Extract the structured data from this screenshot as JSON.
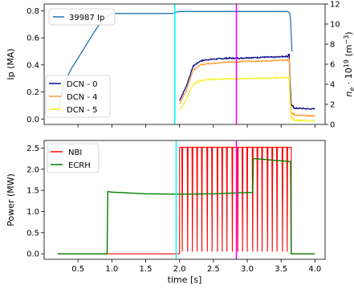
{
  "chart_data": [
    {
      "type": "line",
      "xlabel": "",
      "ylabel": "Ip (MA)",
      "y2label_main": "n",
      "y2label_sub": "e",
      "y2label_rest": " · 10",
      "y2label_exp": "19",
      "y2label_unit": " (m",
      "y2label_unit_exp": "−3",
      "y2label_close": ")",
      "xlim": [
        0,
        4.15
      ],
      "ylim": [
        -0.04,
        0.85
      ],
      "y2lim": [
        0,
        12
      ],
      "xticks": [
        0.5,
        1.0,
        1.5,
        2.0,
        2.5,
        3.0,
        3.5,
        4.0
      ],
      "yticks": [
        0.0,
        0.2,
        0.4,
        0.6,
        0.8
      ],
      "ytick_labels": [
        "0.0",
        "0.2",
        "0.4",
        "0.6",
        "0.8"
      ],
      "y2ticks": [
        0,
        2,
        4,
        6,
        8,
        10,
        12
      ],
      "y2tick_labels": [
        "0",
        "2",
        "4",
        "6",
        "8",
        "10",
        "12"
      ],
      "legend_ip": [
        "39987 Ip"
      ],
      "legend_dcn": [
        "DCN - 0",
        "DCN - 4",
        "DCN - 5"
      ],
      "colors": {
        "ip": "#1f77b4",
        "dcn0": "#0b0b8a",
        "dcn4": "#ff9f3a",
        "dcn5": "#f2f230"
      },
      "vlines": [
        {
          "x": 1.93,
          "color": "#00ffff"
        },
        {
          "x": 2.84,
          "color": "#ff00ff"
        }
      ],
      "series": [
        {
          "name": "39987 Ip",
          "axis": "left",
          "x": [
            0.2,
            0.3,
            0.4,
            0.5,
            0.6,
            0.7,
            0.8,
            0.9,
            1.0,
            1.5,
            1.9,
            1.95,
            2.0,
            2.5,
            3.0,
            3.5,
            3.6,
            3.63,
            3.64,
            3.65,
            3.66
          ],
          "y": [
            0.05,
            0.27,
            0.37,
            0.45,
            0.53,
            0.61,
            0.69,
            0.75,
            0.78,
            0.78,
            0.78,
            0.79,
            0.795,
            0.795,
            0.795,
            0.795,
            0.795,
            0.78,
            0.73,
            0.62,
            0.5
          ]
        },
        {
          "name": "DCN - 0",
          "axis": "right",
          "x": [
            2.0,
            2.1,
            2.2,
            2.3,
            2.4,
            2.5,
            2.6,
            2.7,
            2.8,
            2.9,
            3.0,
            3.1,
            3.2,
            3.3,
            3.4,
            3.5,
            3.6,
            3.62,
            3.63,
            3.65,
            3.7,
            3.8,
            3.9,
            4.0
          ],
          "y": [
            2.4,
            3.8,
            5.8,
            6.3,
            6.45,
            6.5,
            6.55,
            6.6,
            6.6,
            6.6,
            6.65,
            6.65,
            6.7,
            6.7,
            6.7,
            6.75,
            6.8,
            7.0,
            4.5,
            2.0,
            1.6,
            1.6,
            1.55,
            1.55
          ]
        },
        {
          "name": "DCN - 4",
          "axis": "right",
          "x": [
            2.0,
            2.1,
            2.2,
            2.3,
            2.4,
            2.5,
            2.6,
            2.7,
            2.8,
            2.9,
            3.0,
            3.1,
            3.2,
            3.3,
            3.4,
            3.5,
            3.6,
            3.62,
            3.63,
            3.65,
            3.7,
            3.8,
            3.9,
            4.0
          ],
          "y": [
            2.1,
            3.4,
            5.4,
            5.9,
            6.05,
            6.1,
            6.15,
            6.2,
            6.25,
            6.25,
            6.3,
            6.3,
            6.3,
            6.35,
            6.35,
            6.4,
            6.4,
            6.5,
            3.5,
            1.2,
            0.95,
            0.9,
            0.85,
            0.85
          ]
        },
        {
          "name": "DCN - 5",
          "axis": "right",
          "x": [
            2.0,
            2.1,
            2.2,
            2.3,
            2.4,
            2.5,
            2.6,
            2.7,
            2.8,
            2.9,
            3.0,
            3.1,
            3.2,
            3.3,
            3.4,
            3.5,
            3.6,
            3.62,
            3.63,
            3.65,
            3.7,
            3.8,
            3.9,
            4.0
          ],
          "y": [
            1.4,
            2.5,
            4.0,
            4.35,
            4.45,
            4.5,
            4.5,
            4.55,
            4.55,
            4.55,
            4.6,
            4.6,
            4.6,
            4.6,
            4.65,
            4.65,
            4.65,
            4.7,
            2.5,
            0.7,
            0.4,
            0.4,
            0.35,
            0.35
          ]
        }
      ]
    },
    {
      "type": "line",
      "xlabel": "time [s]",
      "ylabel": "Power (MW)",
      "xlim": [
        0,
        4.15
      ],
      "ylim": [
        -0.13,
        2.68
      ],
      "xticks": [
        0.5,
        1.0,
        1.5,
        2.0,
        2.5,
        3.0,
        3.5,
        4.0
      ],
      "xtick_labels": [
        "0.5",
        "1.0",
        "1.5",
        "2.0",
        "2.5",
        "3.0",
        "3.5",
        "4.0"
      ],
      "yticks": [
        0.0,
        0.5,
        1.0,
        1.5,
        2.0,
        2.5
      ],
      "ytick_labels": [
        "0.0",
        "0.5",
        "1.0",
        "1.5",
        "2.0",
        "2.5"
      ],
      "legend": [
        "NBI",
        "ECRH"
      ],
      "colors": {
        "nbi": "#ff0000",
        "ecrh": "#008000"
      },
      "vlines": [
        {
          "x": 1.95,
          "color": "#00ffff"
        },
        {
          "x": 2.84,
          "color": "#ff00ff"
        }
      ],
      "series": [
        {
          "name": "NBI",
          "pulse": {
            "baseline": 0.0,
            "x_start": 0.2,
            "x_on": 2.0,
            "x_off": 3.65,
            "x_end": 4.0,
            "high": 2.52,
            "dip_low": 0.05,
            "dips_x": [
              2.04,
              2.12,
              2.19,
              2.26,
              2.33,
              2.41,
              2.48,
              2.56,
              2.63,
              2.7,
              2.78,
              2.86,
              2.93,
              3.0,
              3.08,
              3.15,
              3.22,
              3.3,
              3.37,
              3.44,
              3.52,
              3.59
            ]
          }
        },
        {
          "name": "ECRH",
          "x": [
            0.2,
            0.93,
            0.94,
            1.0,
            1.5,
            2.0,
            2.5,
            3.0,
            3.08,
            3.09,
            3.1,
            3.5,
            3.64,
            3.65,
            4.0
          ],
          "y": [
            0.0,
            0.0,
            1.47,
            1.46,
            1.42,
            1.41,
            1.42,
            1.45,
            1.45,
            2.25,
            2.25,
            2.2,
            2.18,
            0.0,
            0.0
          ]
        }
      ]
    }
  ]
}
